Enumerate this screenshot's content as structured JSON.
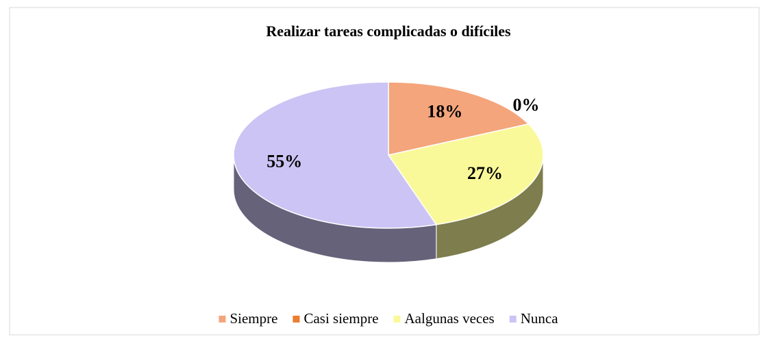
{
  "chart_data": {
    "type": "pie3d",
    "title": "Realizar tareas complicadas o difíciles",
    "categories": [
      "Siempre",
      "Casi siempre",
      "Aalgunas veces",
      "Nunca"
    ],
    "values": [
      18,
      0,
      27,
      55
    ],
    "value_labels": [
      "18%",
      "0%",
      "27%",
      "55%"
    ],
    "colors": [
      "#f4a57c",
      "#ed7d31",
      "#faf99a",
      "#ccc4f4"
    ],
    "legend": "bottom"
  }
}
